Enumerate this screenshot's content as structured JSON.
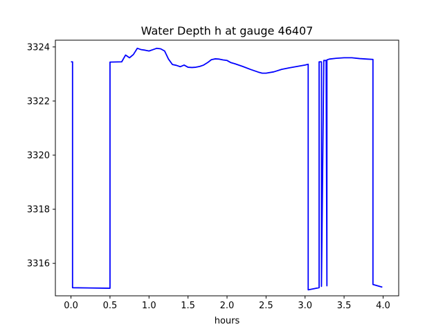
{
  "chart_data": {
    "type": "line",
    "title": "Water Depth h at gauge 46407",
    "xlabel": "hours",
    "ylabel": "",
    "xlim": [
      -0.2,
      4.2
    ],
    "ylim": [
      3314.8,
      3324.25
    ],
    "x_ticks": [
      0.0,
      0.5,
      1.0,
      1.5,
      2.0,
      2.5,
      3.0,
      3.5,
      4.0
    ],
    "x_tick_labels": [
      "0.0",
      "0.5",
      "1.0",
      "1.5",
      "2.0",
      "2.5",
      "3.0",
      "3.5",
      "4.0"
    ],
    "y_ticks": [
      3316,
      3318,
      3320,
      3322,
      3324
    ],
    "y_tick_labels": [
      "3316",
      "3318",
      "3320",
      "3322",
      "3324"
    ],
    "grid": false,
    "legend": "none",
    "series": [
      {
        "color": "#0000ff",
        "x": [
          0.0,
          0.02,
          0.02,
          0.5,
          0.5,
          0.65,
          0.7,
          0.75,
          0.8,
          0.85,
          0.9,
          0.95,
          1.0,
          1.05,
          1.1,
          1.15,
          1.2,
          1.25,
          1.3,
          1.35,
          1.4,
          1.45,
          1.5,
          1.55,
          1.6,
          1.65,
          1.7,
          1.75,
          1.8,
          1.85,
          1.9,
          1.95,
          2.0,
          2.05,
          2.1,
          2.2,
          2.3,
          2.4,
          2.45,
          2.5,
          2.6,
          2.7,
          2.8,
          2.9,
          3.0,
          3.04,
          3.04,
          3.18,
          3.18,
          3.2,
          3.21,
          3.21,
          3.24,
          3.24,
          3.27,
          3.28,
          3.28,
          3.31,
          3.31,
          3.4,
          3.5,
          3.6,
          3.7,
          3.8,
          3.87,
          3.87,
          3.99
        ],
        "y": [
          3323.45,
          3323.45,
          3315.1,
          3315.08,
          3323.44,
          3323.45,
          3323.7,
          3323.6,
          3323.72,
          3323.95,
          3323.9,
          3323.88,
          3323.85,
          3323.9,
          3323.95,
          3323.93,
          3323.85,
          3323.55,
          3323.35,
          3323.32,
          3323.27,
          3323.33,
          3323.25,
          3323.24,
          3323.25,
          3323.28,
          3323.33,
          3323.42,
          3323.53,
          3323.56,
          3323.55,
          3323.52,
          3323.5,
          3323.42,
          3323.38,
          3323.28,
          3323.17,
          3323.07,
          3323.03,
          3323.03,
          3323.08,
          3323.17,
          3323.23,
          3323.28,
          3323.33,
          3323.36,
          3315.02,
          3315.1,
          3323.45,
          3323.45,
          3323.45,
          3315.15,
          3323.5,
          3323.5,
          3323.5,
          3315.17,
          3323.52,
          3323.55,
          3323.55,
          3323.58,
          3323.6,
          3323.6,
          3323.57,
          3323.55,
          3323.54,
          3315.22,
          3315.12
        ]
      }
    ]
  }
}
